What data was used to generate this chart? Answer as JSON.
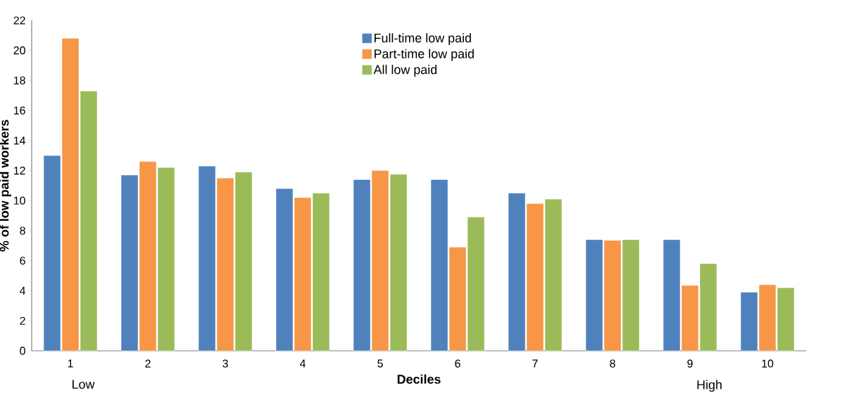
{
  "chart_data": {
    "type": "bar",
    "xlabel": "Deciles",
    "ylabel": "% of low paid workers",
    "categories": [
      "1",
      "2",
      "3",
      "4",
      "5",
      "6",
      "7",
      "8",
      "9",
      "10"
    ],
    "series": [
      {
        "name": "Full-time low paid",
        "color": "#4f81bd",
        "values": [
          13.0,
          11.7,
          12.3,
          10.8,
          11.4,
          11.4,
          10.5,
          7.4,
          7.4,
          3.9
        ]
      },
      {
        "name": "Part-time low paid",
        "color": "#f79646",
        "values": [
          20.8,
          12.6,
          11.5,
          10.2,
          12.0,
          6.9,
          9.8,
          7.35,
          4.35,
          4.4
        ]
      },
      {
        "name": "All low paid",
        "color": "#9bbb59",
        "values": [
          17.3,
          12.2,
          11.9,
          10.5,
          11.75,
          8.9,
          10.1,
          7.4,
          5.8,
          4.2
        ]
      }
    ],
    "ylim": [
      0,
      22
    ],
    "yticks": [
      0,
      2,
      4,
      6,
      8,
      10,
      12,
      14,
      16,
      18,
      20,
      22
    ],
    "grid": false,
    "legend": "top",
    "annotations": [
      "Low",
      "High"
    ]
  }
}
